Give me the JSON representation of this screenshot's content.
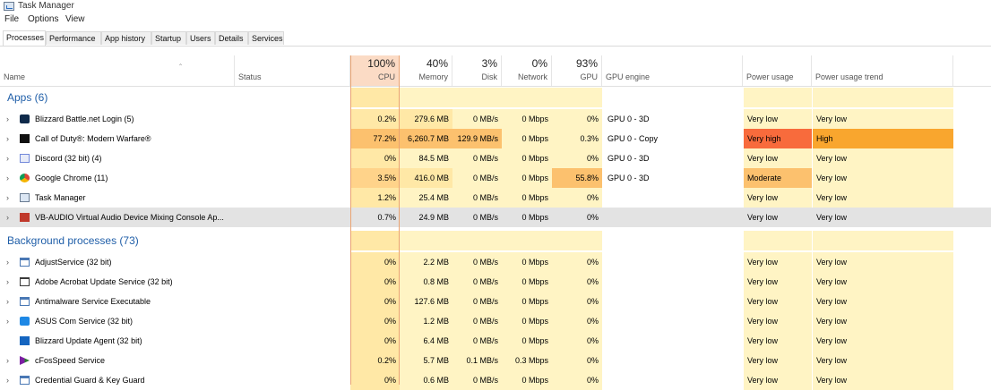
{
  "window": {
    "title": "Task Manager"
  },
  "menu": [
    "File",
    "Options",
    "View"
  ],
  "tabs": [
    "Processes",
    "Performance",
    "App history",
    "Startup",
    "Users",
    "Details",
    "Services"
  ],
  "active_tab": "Processes",
  "columns": {
    "name": "Name",
    "status": "Status",
    "cpu": {
      "pct": "100%",
      "label": "CPU"
    },
    "memory": {
      "pct": "40%",
      "label": "Memory"
    },
    "disk": {
      "pct": "3%",
      "label": "Disk"
    },
    "network": {
      "pct": "0%",
      "label": "Network"
    },
    "gpu": {
      "pct": "93%",
      "label": "GPU"
    },
    "gpu_engine": "GPU engine",
    "power": "Power usage",
    "power_trend": "Power usage trend"
  },
  "groups": {
    "apps": "Apps (6)",
    "background": "Background processes (73)"
  },
  "colors": {
    "heat_light": "#fff4c4",
    "heat_mid": "#ffe8a6",
    "heat_cpu": "#ffd38a",
    "heat_strong": "#fcc16e",
    "very_high": "#f86b3c",
    "high": "#f9a62e",
    "selected": "#e3e3e3",
    "accent": "#1f5ea8"
  },
  "apps": [
    {
      "name": "Blizzard Battle.net Login (5)",
      "icon": "battlenet-icon",
      "cpu": "0.2%",
      "memory": "279.6 MB",
      "disk": "0 MB/s",
      "network": "0 Mbps",
      "gpu": "0%",
      "gpu_engine": "GPU 0 - 3D",
      "power": "Very low",
      "trend": "Very low",
      "expandable": true
    },
    {
      "name": "Call of Duty®: Modern Warfare®",
      "icon": "mw-icon",
      "cpu": "77.2%",
      "memory": "6,260.7 MB",
      "disk": "129.9 MB/s",
      "network": "0 Mbps",
      "gpu": "0.3%",
      "gpu_engine": "GPU 0 - Copy",
      "power": "Very high",
      "trend": "High",
      "expandable": true
    },
    {
      "name": "Discord (32 bit) (4)",
      "icon": "discord-icon",
      "cpu": "0%",
      "memory": "84.5 MB",
      "disk": "0 MB/s",
      "network": "0 Mbps",
      "gpu": "0%",
      "gpu_engine": "GPU 0 - 3D",
      "power": "Very low",
      "trend": "Very low",
      "expandable": true
    },
    {
      "name": "Google Chrome (11)",
      "icon": "chrome-icon",
      "cpu": "3.5%",
      "memory": "416.0 MB",
      "disk": "0 MB/s",
      "network": "0 Mbps",
      "gpu": "55.8%",
      "gpu_engine": "GPU 0 - 3D",
      "power": "Moderate",
      "trend": "Very low",
      "expandable": true
    },
    {
      "name": "Task Manager",
      "icon": "task-manager-icon",
      "cpu": "1.2%",
      "memory": "25.4 MB",
      "disk": "0 MB/s",
      "network": "0 Mbps",
      "gpu": "0%",
      "gpu_engine": "",
      "power": "Very low",
      "trend": "Very low",
      "expandable": true
    },
    {
      "name": "VB-AUDIO Virtual Audio Device Mixing Console Ap...",
      "icon": "vb-audio-icon",
      "cpu": "0.7%",
      "memory": "24.9 MB",
      "disk": "0 MB/s",
      "network": "0 Mbps",
      "gpu": "0%",
      "gpu_engine": "",
      "power": "Very low",
      "trend": "Very low",
      "expandable": true,
      "selected": true
    }
  ],
  "background": [
    {
      "name": "AdjustService (32 bit)",
      "icon": "service-window-icon",
      "cpu": "0%",
      "memory": "2.2 MB",
      "disk": "0 MB/s",
      "network": "0 Mbps",
      "gpu": "0%",
      "gpu_engine": "",
      "power": "Very low",
      "trend": "Very low",
      "expandable": true
    },
    {
      "name": "Adobe Acrobat Update Service (32 bit)",
      "icon": "window-outline-icon",
      "cpu": "0%",
      "memory": "0.8 MB",
      "disk": "0 MB/s",
      "network": "0 Mbps",
      "gpu": "0%",
      "gpu_engine": "",
      "power": "Very low",
      "trend": "Very low",
      "expandable": true
    },
    {
      "name": "Antimalware Service Executable",
      "icon": "service-window-icon",
      "cpu": "0%",
      "memory": "127.6 MB",
      "disk": "0 MB/s",
      "network": "0 Mbps",
      "gpu": "0%",
      "gpu_engine": "",
      "power": "Very low",
      "trend": "Very low",
      "expandable": true
    },
    {
      "name": "ASUS Com Service (32 bit)",
      "icon": "asus-icon",
      "cpu": "0%",
      "memory": "1.2 MB",
      "disk": "0 MB/s",
      "network": "0 Mbps",
      "gpu": "0%",
      "gpu_engine": "",
      "power": "Very low",
      "trend": "Very low",
      "expandable": true
    },
    {
      "name": "Blizzard Update Agent (32 bit)",
      "icon": "blizzard-update-icon",
      "cpu": "0%",
      "memory": "6.4 MB",
      "disk": "0 MB/s",
      "network": "0 Mbps",
      "gpu": "0%",
      "gpu_engine": "",
      "power": "Very low",
      "trend": "Very low",
      "expandable": false
    },
    {
      "name": "cFosSpeed Service",
      "icon": "cfosspeed-icon",
      "cpu": "0.2%",
      "memory": "5.7 MB",
      "disk": "0.1 MB/s",
      "network": "0.3 Mbps",
      "gpu": "0%",
      "gpu_engine": "",
      "power": "Very low",
      "trend": "Very low",
      "expandable": true
    },
    {
      "name": "Credential Guard & Key Guard",
      "icon": "service-window-icon",
      "cpu": "0%",
      "memory": "0.6 MB",
      "disk": "0 MB/s",
      "network": "0 Mbps",
      "gpu": "0%",
      "gpu_engine": "",
      "power": "Very low",
      "trend": "Very low",
      "expandable": true
    }
  ]
}
